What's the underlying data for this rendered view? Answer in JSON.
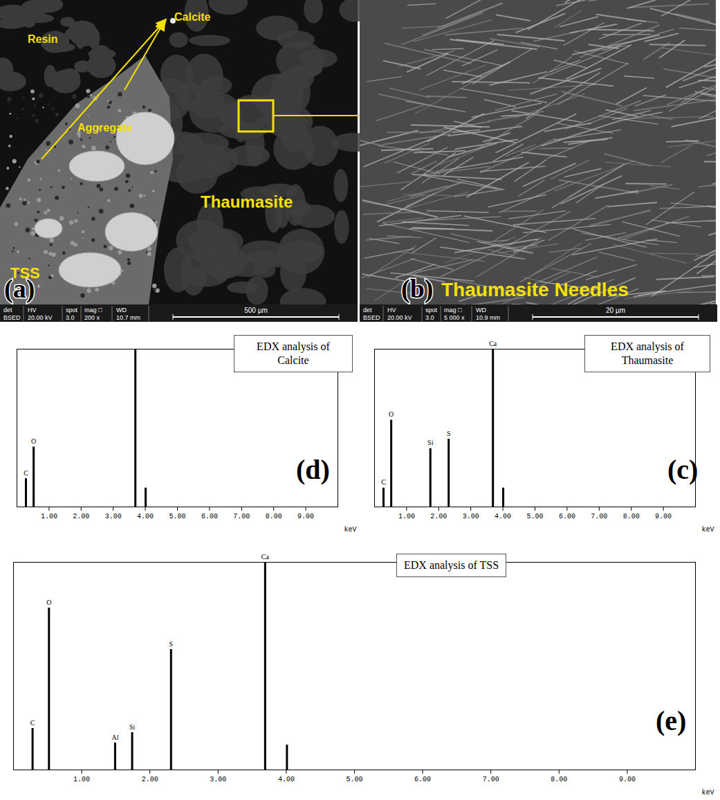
{
  "panels": {
    "a": {
      "letter": "(a)",
      "labels": [
        "Resin",
        "Calcite",
        "Aggregate",
        "TSS",
        "Thaumasite"
      ],
      "info_header": [
        "det",
        "HV",
        "spot",
        "mag □",
        "WD"
      ],
      "info_values": [
        "BSED",
        "20.00 kV",
        "3.0",
        "200 x",
        "10.7 mm"
      ],
      "scale_bar": "500 µm"
    },
    "b": {
      "letter": "(b)",
      "label": "Thaumasite Needles",
      "info_header": [
        "det",
        "HV",
        "spot",
        "mag □",
        "WD"
      ],
      "info_values": [
        "BSED",
        "20.00 kV",
        "3.0",
        "5 000 x",
        "10.9 mm"
      ],
      "scale_bar": "20 µm"
    }
  },
  "chart_data": [
    {
      "type": "bar",
      "panel": "(d)",
      "title": "EDX analysis of Calcite",
      "x": [
        0.28,
        0.52,
        3.69,
        4.01
      ],
      "values": [
        18,
        38,
        100,
        12
      ],
      "peak_labels": [
        "C",
        "O",
        null,
        null
      ],
      "xlim": [
        0,
        10
      ],
      "xticks": [
        {
          "value": 1,
          "label": "1.00"
        },
        {
          "value": 2,
          "label": "2.00"
        },
        {
          "value": 3,
          "label": "3.00"
        },
        {
          "value": 4,
          "label": "4.00"
        },
        {
          "value": 5,
          "label": "5.00"
        },
        {
          "value": 6,
          "label": "6.00"
        },
        {
          "value": 7,
          "label": "7.00"
        },
        {
          "value": 8,
          "label": "8.00"
        },
        {
          "value": 9,
          "label": "9.00"
        }
      ],
      "xlabel": "keV",
      "ylim": [
        0,
        100
      ],
      "tick_labels": "x",
      "color": "#000000"
    },
    {
      "type": "bar",
      "panel": "(c)",
      "title": "EDX analysis of Thaumasite",
      "x": [
        0.28,
        0.52,
        1.74,
        2.31,
        3.69,
        4.01
      ],
      "values": [
        12,
        55,
        37,
        43,
        100,
        12
      ],
      "peak_labels": [
        "C",
        "O",
        "Si",
        "S",
        "Ca",
        null
      ],
      "xlim": [
        0,
        10
      ],
      "xticks": [
        {
          "value": 1,
          "label": "1.00"
        },
        {
          "value": 2,
          "label": "2.00"
        },
        {
          "value": 3,
          "label": "3.00"
        },
        {
          "value": 4,
          "label": "4.00"
        },
        {
          "value": 5,
          "label": "5.00"
        },
        {
          "value": 6,
          "label": "6.00"
        },
        {
          "value": 7,
          "label": "7.00"
        },
        {
          "value": 8,
          "label": "8.00"
        },
        {
          "value": 9,
          "label": "9.00"
        }
      ],
      "xlabel": "keV",
      "ylim": [
        0,
        100
      ],
      "tick_labels": "x",
      "color": "#000000"
    },
    {
      "type": "bar",
      "panel": "(e)",
      "title": "EDX analysis of TSS",
      "x": [
        0.28,
        0.52,
        1.49,
        1.74,
        2.31,
        3.69,
        4.01
      ],
      "values": [
        20,
        78,
        13,
        18,
        58,
        100,
        12
      ],
      "peak_labels": [
        "C",
        "O",
        "Al",
        "Si",
        "S",
        "Ca",
        null
      ],
      "xlim": [
        0,
        10
      ],
      "xticks": [
        {
          "value": 1,
          "label": "1.00"
        },
        {
          "value": 2,
          "label": "2.00"
        },
        {
          "value": 3,
          "label": "3.00"
        },
        {
          "value": 4,
          "label": "4.00"
        },
        {
          "value": 5,
          "label": "5.00"
        },
        {
          "value": 6,
          "label": "6.00"
        },
        {
          "value": 7,
          "label": "7.00"
        },
        {
          "value": 8,
          "label": "8.00"
        },
        {
          "value": 9,
          "label": "9.00"
        }
      ],
      "xlabel": "keV",
      "ylim": [
        0,
        100
      ],
      "tick_labels": "x",
      "color": "#000000"
    }
  ]
}
